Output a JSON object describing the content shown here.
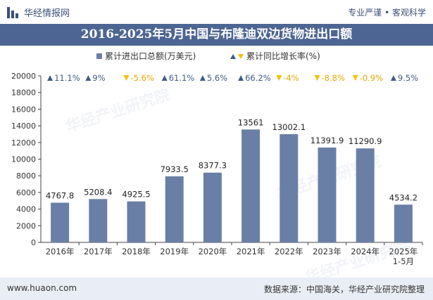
{
  "header": {
    "brand": "华经情报网",
    "tags": "专业严谨 • 客观科学",
    "title": "2016-2025年5月中国与布隆迪双边货物进出口额"
  },
  "footer": {
    "website": "www.huaon.com",
    "source": "数据来源：中国海关，华经产业研究院整理"
  },
  "watermark": "华经产业研究院",
  "chart_data": {
    "type": "bar",
    "categories": [
      "2016年",
      "2017年",
      "2018年",
      "2019年",
      "2020年",
      "2021年",
      "2022年",
      "2023年",
      "2024年",
      "2025年\n1-5月"
    ],
    "series": [
      {
        "name": "累计进出口总额(万美元)",
        "values": [
          4767.8,
          5208.4,
          4925.5,
          7933.5,
          8377.3,
          13561,
          13002.1,
          11391.9,
          11290.9,
          4534.2
        ],
        "labels": [
          "4767.8",
          "5208.4",
          "4925.5",
          "7933.5",
          "8377.3",
          "13561",
          "13002.1",
          "11391.9",
          "11290.9",
          "4534.2"
        ],
        "color": "#6a7fa6"
      },
      {
        "name": "累计同比增长率(%)",
        "values": [
          11.1,
          9,
          -5.6,
          61.1,
          5.6,
          66.2,
          -4,
          -8.8,
          -0.9,
          9.5
        ],
        "labels": [
          "11.1%",
          "9%",
          "-5.6%",
          "61.1%",
          "5.6%",
          "66.2%",
          "-4%",
          "-8.8%",
          "-0.9%",
          "9.5%"
        ],
        "up_color": "#3e5c86",
        "down_color": "#f2c200"
      }
    ],
    "y_ticks": [
      "0",
      "2000",
      "4000",
      "6000",
      "8000",
      "10000",
      "12000",
      "14000",
      "16000",
      "18000",
      "20000"
    ],
    "ylim": [
      0,
      20000
    ],
    "grid": false,
    "legend": "top-center"
  }
}
